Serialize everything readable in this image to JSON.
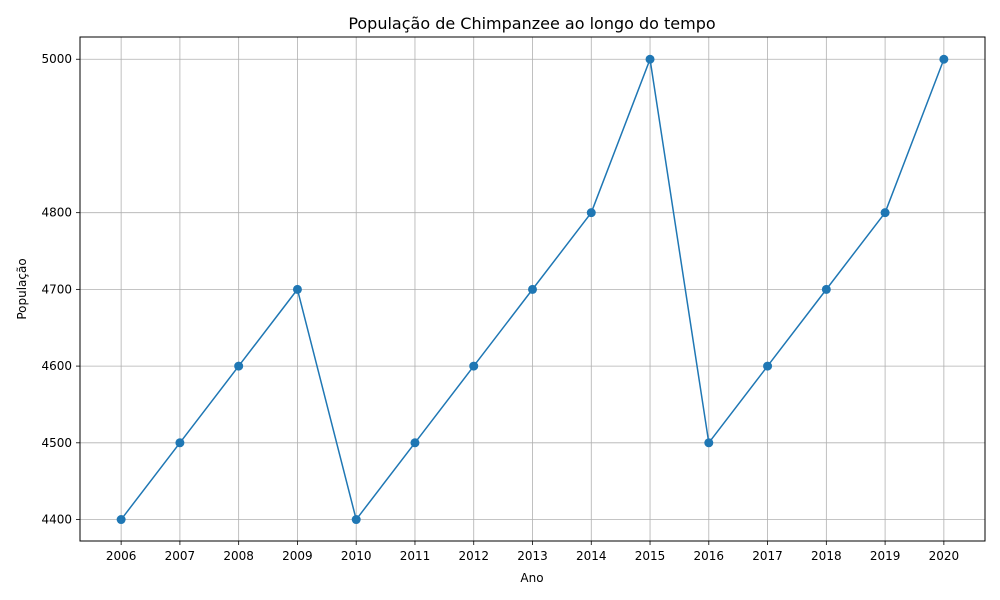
{
  "chart_data": {
    "type": "line",
    "title": "População de Chimpanzee ao longo do tempo",
    "xlabel": "Ano",
    "ylabel": "População",
    "x": [
      2006,
      2007,
      2008,
      2009,
      2010,
      2011,
      2012,
      2013,
      2014,
      2015,
      2016,
      2017,
      2018,
      2019,
      2020
    ],
    "series": [
      {
        "values": [
          4400,
          4500,
          4600,
          4700,
          4400,
          4500,
          4600,
          4700,
          4800,
          5000,
          4500,
          4600,
          4700,
          4800,
          5000
        ],
        "color": "#1f77b4",
        "marker": "circle"
      }
    ],
    "yticks": [
      4400,
      4500,
      4600,
      4700,
      4800,
      5000
    ],
    "ylim": [
      4372,
      5029
    ],
    "xlim": [
      2005.3,
      2020.7
    ],
    "grid": true,
    "colors": {
      "line": "#1f77b4",
      "grid": "#b0b0b0",
      "axis": "#000000"
    }
  }
}
